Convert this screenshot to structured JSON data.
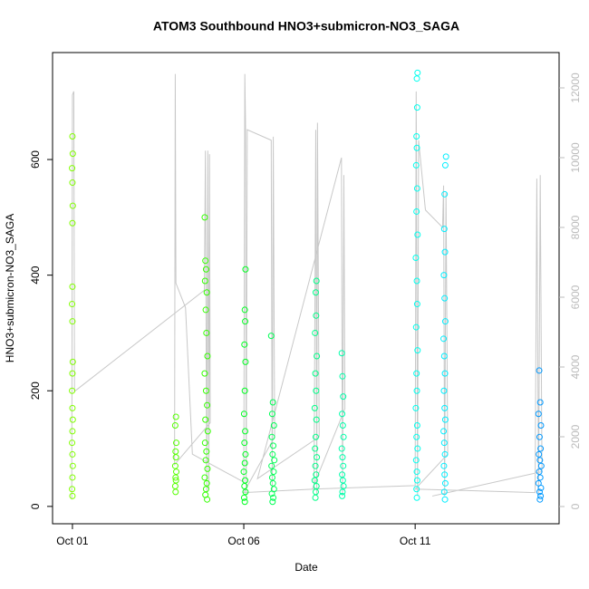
{
  "chart_data": {
    "type": "scatter",
    "title": "ATOM3 Southbound HNO3+submicron-NO3_SAGA",
    "x_label": "Date",
    "y_label": "HNO3+submicron-NO3_SAGA",
    "xlim": [
      0.42,
      15.2
    ],
    "xticks": [
      {
        "value": 1,
        "label": "Oct 01"
      },
      {
        "value": 6,
        "label": "Oct 06"
      },
      {
        "value": 11,
        "label": "Oct 11"
      }
    ],
    "ylim": [
      -30,
      785
    ],
    "yticks": [
      0,
      200,
      400,
      600
    ],
    "y2lim": [
      -494,
      13013
    ],
    "y2ticks": [
      0,
      2000,
      4000,
      6000,
      8000,
      10000,
      12000
    ],
    "series": [
      {
        "color": "#c8c8c8",
        "axis": "y2",
        "style": "line",
        "x": [
          0.98,
          1.0,
          1.04,
          1.06,
          4.85,
          4.88,
          4.92,
          4.95,
          4.98,
          5.0,
          5.02,
          3.98,
          4.0,
          4.02,
          4.3,
          4.5,
          6.0,
          6.03,
          6.05,
          6.07,
          6.1,
          6.8,
          6.83,
          6.86,
          6.9,
          6.0,
          8.05,
          8.1,
          8.13,
          8.15,
          8.2,
          6.4,
          8.85,
          8.88,
          8.92,
          8.95,
          8.0,
          11.0,
          11.03,
          11.07,
          11.1,
          11.3,
          11.8,
          11.83,
          11.86,
          11.9,
          11.95,
          11.0,
          14.5,
          14.55,
          14.6,
          14.65,
          14.7,
          11.5
        ],
        "values": [
          200,
          11800,
          11900,
          3300,
          6200,
          10200,
          400,
          10200,
          500,
          10100,
          2400,
          1200,
          12400,
          6400,
          5700,
          1500,
          700,
          12400,
          11000,
          300,
          10800,
          10500,
          400,
          10600,
          2000,
          400,
          500,
          10800,
          300,
          11000,
          2000,
          800,
          10000,
          300,
          9500,
          2800,
          500,
          600,
          11900,
          300,
          10500,
          8500,
          8000,
          9200,
          300,
          9000,
          1500,
          500,
          400,
          9400,
          300,
          9500,
          1000,
          300
        ]
      },
      {
        "color": "#80ff00",
        "x": [
          1.0,
          1.01,
          0.99,
          1.0,
          1.01,
          1.0,
          1.0,
          0.99,
          1.0,
          1.01,
          1.0,
          0.99,
          1.0,
          1.01,
          1.0,
          0.99,
          1.0,
          1.01,
          1.0,
          0.99,
          1.0
        ],
        "values": [
          640,
          610,
          585,
          560,
          520,
          490,
          380,
          350,
          320,
          250,
          230,
          200,
          170,
          150,
          130,
          110,
          90,
          70,
          50,
          30,
          18
        ]
      },
      {
        "color": "#55ff00",
        "x": [
          4.02,
          4.0,
          4.03,
          4.01,
          4.02,
          4.0,
          4.03,
          4.01,
          4.02,
          4.0,
          4.01
        ],
        "values": [
          155,
          140,
          110,
          95,
          85,
          70,
          60,
          50,
          45,
          35,
          25
        ]
      },
      {
        "color": "#33ff00",
        "x": [
          4.86,
          4.88,
          4.9,
          4.87,
          4.92,
          4.89,
          4.91,
          4.94,
          4.86,
          4.9,
          4.93,
          4.88,
          4.95,
          4.87,
          4.91,
          4.89,
          4.94,
          4.86,
          4.92,
          4.9,
          4.88,
          4.93
        ],
        "values": [
          500,
          425,
          410,
          390,
          370,
          340,
          300,
          260,
          230,
          200,
          175,
          150,
          130,
          110,
          95,
          80,
          65,
          50,
          40,
          30,
          20,
          12
        ]
      },
      {
        "color": "#00ff22",
        "x": [
          6.05,
          6.03,
          6.04,
          6.02,
          6.05,
          6.03,
          6.01,
          6.04,
          6.02,
          6.05,
          6.03,
          6.0,
          6.04,
          6.02,
          6.05,
          6.01,
          6.03
        ],
        "values": [
          410,
          340,
          320,
          280,
          250,
          200,
          160,
          130,
          110,
          90,
          75,
          60,
          45,
          35,
          25,
          15,
          8
        ]
      },
      {
        "color": "#00ff55",
        "x": [
          6.8,
          6.85,
          6.83,
          6.88,
          6.82,
          6.86,
          6.84,
          6.89,
          6.81,
          6.87,
          6.83,
          6.85,
          6.88,
          6.82,
          6.86,
          6.84
        ],
        "values": [
          295,
          180,
          160,
          140,
          120,
          105,
          90,
          80,
          70,
          60,
          50,
          40,
          30,
          22,
          15,
          8
        ]
      },
      {
        "color": "#00ff88",
        "x": [
          8.12,
          8.1,
          8.11,
          8.08,
          8.13,
          8.09,
          8.11,
          8.07,
          8.12,
          8.1,
          8.08,
          8.13,
          8.09,
          8.11,
          8.07,
          8.12,
          8.1,
          8.09
        ],
        "values": [
          390,
          370,
          330,
          300,
          260,
          230,
          200,
          170,
          150,
          120,
          100,
          85,
          70,
          55,
          45,
          35,
          25,
          15
        ]
      },
      {
        "color": "#00ffaa",
        "x": [
          8.86,
          8.88,
          8.9,
          8.87,
          8.89,
          8.91,
          8.86,
          8.88,
          8.9,
          8.87,
          8.89,
          8.91,
          8.88,
          8.87
        ],
        "values": [
          265,
          225,
          190,
          160,
          140,
          120,
          100,
          85,
          70,
          55,
          45,
          35,
          25,
          18
        ]
      },
      {
        "color": "#00ffee",
        "x": [
          11.07,
          11.05,
          11.06,
          11.04,
          11.05,
          11.03,
          11.06,
          11.04,
          11.07,
          11.02,
          11.05,
          11.06,
          11.03,
          11.07,
          11.04,
          11.05,
          11.02,
          11.06,
          11.04,
          11.07,
          11.03,
          11.05,
          11.06,
          11.04,
          11.05
        ],
        "values": [
          750,
          740,
          690,
          640,
          620,
          590,
          550,
          510,
          470,
          430,
          390,
          350,
          310,
          270,
          230,
          200,
          170,
          140,
          120,
          100,
          80,
          60,
          45,
          30,
          15
        ]
      },
      {
        "color": "#00eeff",
        "x": [
          11.9,
          11.88,
          11.86,
          11.85,
          11.87,
          11.84,
          11.86,
          11.88,
          11.83,
          11.85,
          11.87,
          11.84,
          11.86,
          11.88,
          11.83,
          11.85,
          11.87,
          11.84,
          11.86,
          11.88,
          11.85,
          11.87
        ],
        "values": [
          605,
          590,
          540,
          480,
          440,
          400,
          360,
          320,
          290,
          260,
          230,
          200,
          170,
          150,
          130,
          110,
          90,
          70,
          55,
          40,
          25,
          12
        ]
      },
      {
        "color": "#0099ff",
        "x": [
          14.62,
          14.65,
          14.6,
          14.67,
          14.63,
          14.66,
          14.61,
          14.64,
          14.68,
          14.62,
          14.65,
          14.6,
          14.67,
          14.63,
          14.66,
          14.64
        ],
        "values": [
          235,
          180,
          160,
          140,
          120,
          100,
          90,
          80,
          70,
          60,
          50,
          40,
          32,
          25,
          18,
          12
        ]
      }
    ]
  }
}
